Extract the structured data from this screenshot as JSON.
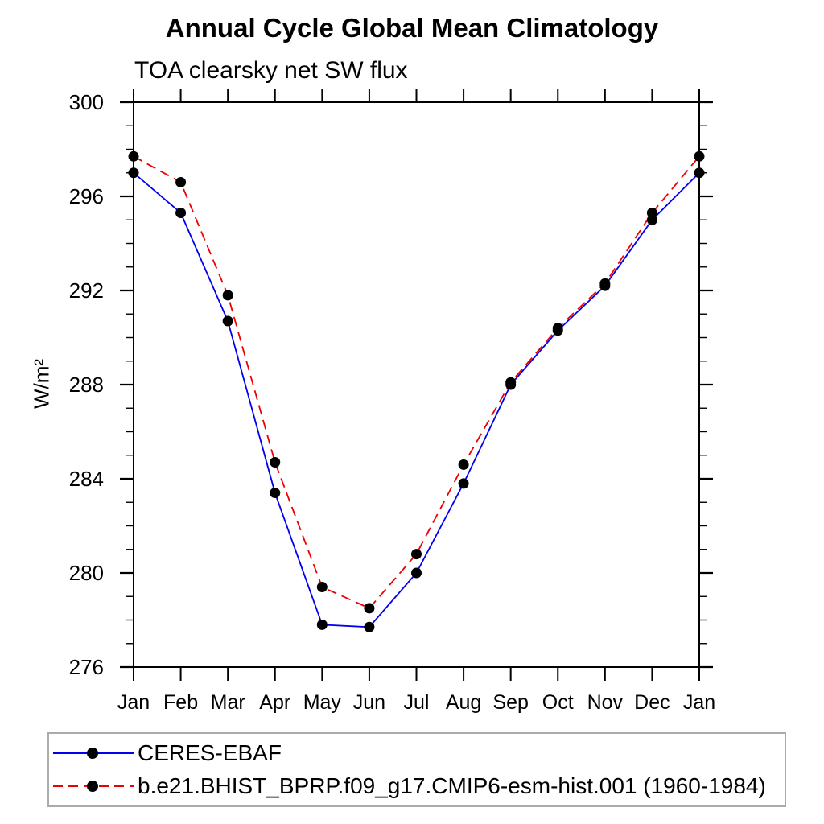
{
  "chart_data": {
    "type": "line",
    "title": "Annual Cycle Global Mean Climatology",
    "subtitle": "TOA clearsky net SW flux",
    "ylabel": "W/m²",
    "xlabel": "",
    "categories": [
      "Jan",
      "Feb",
      "Mar",
      "Apr",
      "May",
      "Jun",
      "Jul",
      "Aug",
      "Sep",
      "Oct",
      "Nov",
      "Dec",
      "Jan"
    ],
    "series": [
      {
        "name": "CERES-EBAF",
        "color": "#0000ee",
        "line_style": "solid",
        "marker": "filled-circle",
        "values": [
          297.0,
          295.3,
          290.7,
          283.4,
          277.8,
          277.7,
          280.0,
          283.8,
          288.0,
          290.3,
          292.2,
          295.0,
          297.0
        ]
      },
      {
        "name": "b.e21.BHIST_BPRP.f09_g17.CMIP6-esm-hist.001 (1960-1984)",
        "color": "#ee0000",
        "line_style": "dashed",
        "marker": "filled-circle",
        "values": [
          297.7,
          296.6,
          291.8,
          284.7,
          279.4,
          278.5,
          280.8,
          284.6,
          288.1,
          290.4,
          292.3,
          295.3,
          297.7
        ]
      }
    ],
    "ylim": [
      276,
      300
    ],
    "yticks": [
      276,
      280,
      284,
      288,
      292,
      296,
      300
    ],
    "y_minor_step": 1,
    "marker_color": "#000000",
    "axis_color": "#000000",
    "grid": false,
    "legend_position": "bottom-left"
  }
}
